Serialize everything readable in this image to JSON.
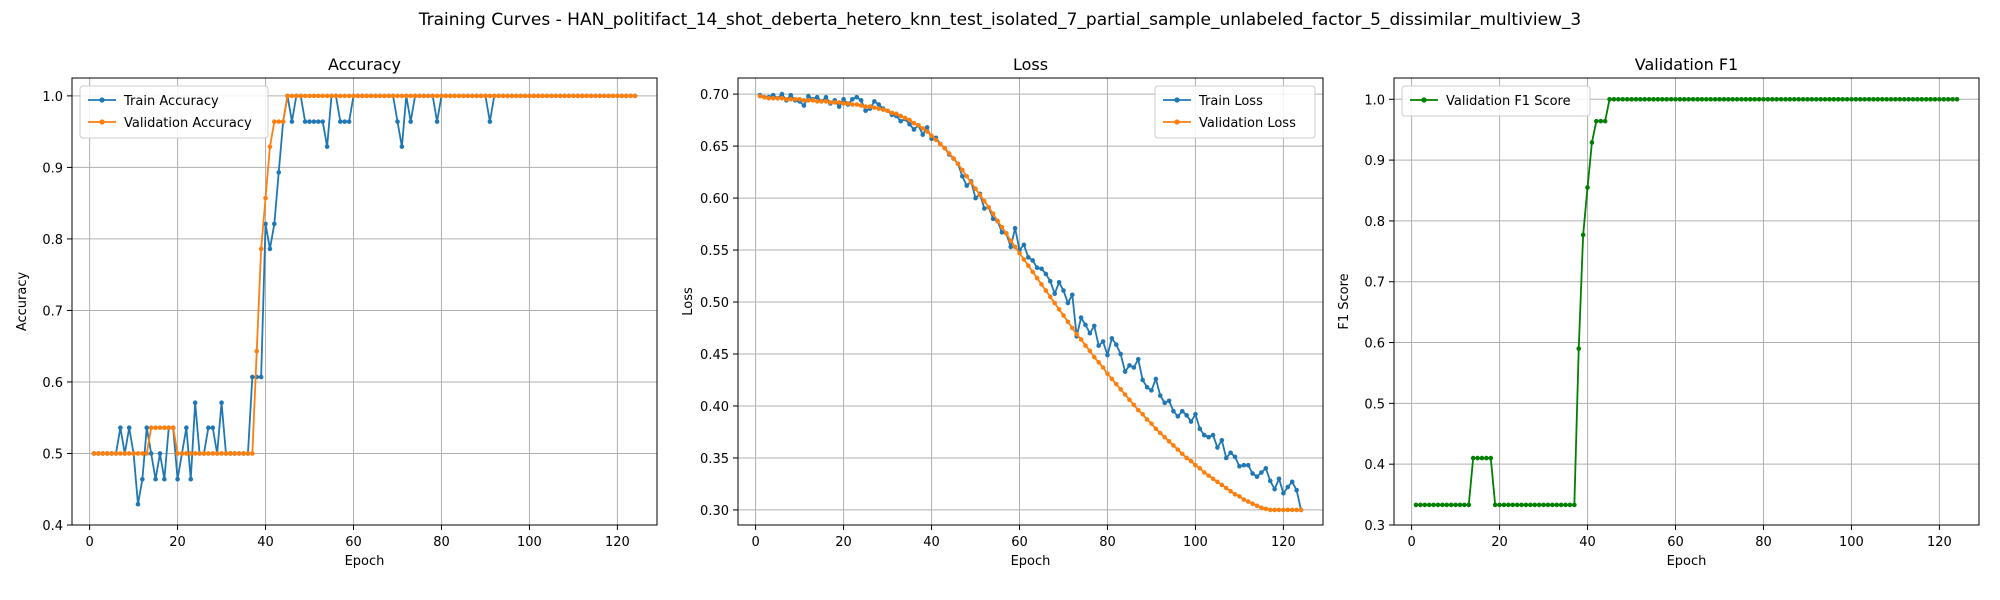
{
  "figure_title": "Training Curves - HAN_politifact_14_shot_deberta_hetero_knn_test_isolated_7_partial_sample_unlabeled_factor_5_dissimilar_multiview_3",
  "colors": {
    "train": "#1f77b4",
    "validation": "#ff7f0e",
    "f1": "#008000",
    "grid": "#b0b0b0",
    "axis": "#000000"
  },
  "chart_data": [
    {
      "type": "line",
      "title": "Accuracy",
      "xlabel": "Epoch",
      "ylabel": "Accuracy",
      "xlim": [
        -4,
        129
      ],
      "ylim": [
        0.4,
        1.025
      ],
      "xticks": [
        0,
        20,
        40,
        60,
        80,
        100,
        120
      ],
      "yticks": [
        0.4,
        0.5,
        0.6,
        0.7,
        0.8,
        0.9,
        1.0
      ],
      "ytick_labels": [
        "0.4",
        "0.5",
        "0.6",
        "0.7",
        "0.8",
        "0.9",
        "1.0"
      ],
      "grid": true,
      "legend_position": "upper-left",
      "x": [
        1,
        2,
        3,
        4,
        5,
        6,
        7,
        8,
        9,
        10,
        11,
        12,
        13,
        14,
        15,
        16,
        17,
        18,
        19,
        20,
        21,
        22,
        23,
        24,
        25,
        26,
        27,
        28,
        29,
        30,
        31,
        32,
        33,
        34,
        35,
        36,
        37,
        38,
        39,
        40,
        41,
        42,
        43,
        44,
        45,
        46,
        47,
        48,
        49,
        50,
        51,
        52,
        53,
        54,
        55,
        56,
        57,
        58,
        59,
        60,
        61,
        62,
        63,
        64,
        65,
        66,
        67,
        68,
        69,
        70,
        71,
        72,
        73,
        74,
        75,
        76,
        77,
        78,
        79,
        80,
        81,
        82,
        83,
        84,
        85,
        86,
        87,
        88,
        89,
        90,
        91,
        92,
        93,
        94,
        95,
        96,
        97,
        98,
        99,
        100,
        101,
        102,
        103,
        104,
        105,
        106,
        107,
        108,
        109,
        110,
        111,
        112,
        113,
        114,
        115,
        116,
        117,
        118,
        119,
        120,
        121,
        122,
        123,
        124
      ],
      "series": [
        {
          "name": "Train Accuracy",
          "color": "#1f77b4",
          "values": [
            0.5,
            0.5,
            0.5,
            0.5,
            0.5,
            0.5,
            0.536,
            0.5,
            0.536,
            0.5,
            0.429,
            0.464,
            0.536,
            0.5,
            0.464,
            0.5,
            0.464,
            0.536,
            0.536,
            0.464,
            0.5,
            0.536,
            0.464,
            0.571,
            0.5,
            0.5,
            0.536,
            0.536,
            0.5,
            0.571,
            0.5,
            0.5,
            0.5,
            0.5,
            0.5,
            0.5,
            0.607,
            0.607,
            0.607,
            0.821,
            0.786,
            0.821,
            0.893,
            0.964,
            1.0,
            0.964,
            1.0,
            1.0,
            0.964,
            0.964,
            0.964,
            0.964,
            0.964,
            0.929,
            1.0,
            1.0,
            0.964,
            0.964,
            0.964,
            1.0,
            1.0,
            1.0,
            1.0,
            1.0,
            1.0,
            1.0,
            1.0,
            1.0,
            1.0,
            0.964,
            0.929,
            1.0,
            0.964,
            1.0,
            1.0,
            1.0,
            1.0,
            1.0,
            0.964,
            1.0,
            1.0,
            1.0,
            1.0,
            1.0,
            1.0,
            1.0,
            1.0,
            1.0,
            1.0,
            1.0,
            0.964,
            1.0,
            1.0,
            1.0,
            1.0,
            1.0,
            1.0,
            1.0,
            1.0,
            1.0,
            1.0,
            1.0,
            1.0,
            1.0,
            1.0,
            1.0,
            1.0,
            1.0,
            1.0,
            1.0,
            1.0,
            1.0,
            1.0,
            1.0,
            1.0,
            1.0,
            1.0,
            1.0,
            1.0,
            1.0,
            1.0,
            1.0,
            1.0,
            1.0
          ]
        },
        {
          "name": "Validation Accuracy",
          "color": "#ff7f0e",
          "values": [
            0.5,
            0.5,
            0.5,
            0.5,
            0.5,
            0.5,
            0.5,
            0.5,
            0.5,
            0.5,
            0.5,
            0.5,
            0.5,
            0.536,
            0.536,
            0.536,
            0.536,
            0.536,
            0.536,
            0.5,
            0.5,
            0.5,
            0.5,
            0.5,
            0.5,
            0.5,
            0.5,
            0.5,
            0.5,
            0.5,
            0.5,
            0.5,
            0.5,
            0.5,
            0.5,
            0.5,
            0.5,
            0.643,
            0.786,
            0.857,
            0.929,
            0.964,
            0.964,
            0.964,
            1.0,
            1.0,
            1.0,
            1.0,
            1.0,
            1.0,
            1.0,
            1.0,
            1.0,
            1.0,
            1.0,
            1.0,
            1.0,
            1.0,
            1.0,
            1.0,
            1.0,
            1.0,
            1.0,
            1.0,
            1.0,
            1.0,
            1.0,
            1.0,
            1.0,
            1.0,
            1.0,
            1.0,
            1.0,
            1.0,
            1.0,
            1.0,
            1.0,
            1.0,
            1.0,
            1.0,
            1.0,
            1.0,
            1.0,
            1.0,
            1.0,
            1.0,
            1.0,
            1.0,
            1.0,
            1.0,
            1.0,
            1.0,
            1.0,
            1.0,
            1.0,
            1.0,
            1.0,
            1.0,
            1.0,
            1.0,
            1.0,
            1.0,
            1.0,
            1.0,
            1.0,
            1.0,
            1.0,
            1.0,
            1.0,
            1.0,
            1.0,
            1.0,
            1.0,
            1.0,
            1.0,
            1.0,
            1.0,
            1.0,
            1.0,
            1.0,
            1.0,
            1.0,
            1.0,
            1.0
          ]
        }
      ]
    },
    {
      "type": "line",
      "title": "Loss",
      "xlabel": "Epoch",
      "ylabel": "Loss",
      "xlim": [
        -4,
        129
      ],
      "ylim": [
        0.2855,
        0.7155
      ],
      "xticks": [
        0,
        20,
        40,
        60,
        80,
        100,
        120
      ],
      "yticks": [
        0.3,
        0.35,
        0.4,
        0.45,
        0.5,
        0.55,
        0.6,
        0.65,
        0.7
      ],
      "ytick_labels": [
        "0.30",
        "0.35",
        "0.40",
        "0.45",
        "0.50",
        "0.55",
        "0.60",
        "0.65",
        "0.70"
      ],
      "grid": true,
      "legend_position": "upper-right",
      "x": [
        1,
        2,
        3,
        4,
        5,
        6,
        7,
        8,
        9,
        10,
        11,
        12,
        13,
        14,
        15,
        16,
        17,
        18,
        19,
        20,
        21,
        22,
        23,
        24,
        25,
        26,
        27,
        28,
        29,
        30,
        31,
        32,
        33,
        34,
        35,
        36,
        37,
        38,
        39,
        40,
        41,
        42,
        43,
        44,
        45,
        46,
        47,
        48,
        49,
        50,
        51,
        52,
        53,
        54,
        55,
        56,
        57,
        58,
        59,
        60,
        61,
        62,
        63,
        64,
        65,
        66,
        67,
        68,
        69,
        70,
        71,
        72,
        73,
        74,
        75,
        76,
        77,
        78,
        79,
        80,
        81,
        82,
        83,
        84,
        85,
        86,
        87,
        88,
        89,
        90,
        91,
        92,
        93,
        94,
        95,
        96,
        97,
        98,
        99,
        100,
        101,
        102,
        103,
        104,
        105,
        106,
        107,
        108,
        109,
        110,
        111,
        112,
        113,
        114,
        115,
        116,
        117,
        118,
        119,
        120,
        121,
        122,
        123,
        124
      ],
      "series": [
        {
          "name": "Train Loss",
          "color": "#1f77b4",
          "values": [
            0.699,
            0.697,
            0.697,
            0.699,
            0.696,
            0.7,
            0.694,
            0.699,
            0.694,
            0.693,
            0.689,
            0.698,
            0.695,
            0.697,
            0.693,
            0.697,
            0.691,
            0.694,
            0.688,
            0.695,
            0.69,
            0.695,
            0.697,
            0.694,
            0.684,
            0.686,
            0.693,
            0.69,
            0.686,
            0.684,
            0.68,
            0.679,
            0.674,
            0.676,
            0.671,
            0.666,
            0.67,
            0.661,
            0.668,
            0.657,
            0.658,
            0.652,
            0.648,
            0.642,
            0.638,
            0.633,
            0.621,
            0.612,
            0.616,
            0.6,
            0.604,
            0.59,
            0.591,
            0.58,
            0.578,
            0.567,
            0.566,
            0.553,
            0.571,
            0.55,
            0.555,
            0.543,
            0.54,
            0.533,
            0.532,
            0.527,
            0.52,
            0.508,
            0.519,
            0.511,
            0.499,
            0.507,
            0.467,
            0.485,
            0.478,
            0.47,
            0.477,
            0.458,
            0.462,
            0.449,
            0.465,
            0.459,
            0.45,
            0.433,
            0.439,
            0.437,
            0.445,
            0.425,
            0.418,
            0.415,
            0.426,
            0.41,
            0.403,
            0.405,
            0.395,
            0.39,
            0.395,
            0.391,
            0.385,
            0.392,
            0.378,
            0.372,
            0.37,
            0.372,
            0.36,
            0.367,
            0.35,
            0.355,
            0.351,
            0.342,
            0.343,
            0.343,
            0.335,
            0.332,
            0.336,
            0.34,
            0.328,
            0.32,
            0.33,
            0.316,
            0.322,
            0.327,
            0.319,
            0.3
          ]
        },
        {
          "name": "Validation Loss",
          "color": "#ff7f0e",
          "values": [
            0.698,
            0.697,
            0.696,
            0.696,
            0.696,
            0.696,
            0.695,
            0.695,
            0.695,
            0.695,
            0.694,
            0.694,
            0.694,
            0.693,
            0.693,
            0.693,
            0.692,
            0.692,
            0.692,
            0.691,
            0.691,
            0.69,
            0.69,
            0.689,
            0.688,
            0.688,
            0.687,
            0.686,
            0.685,
            0.684,
            0.682,
            0.681,
            0.679,
            0.677,
            0.675,
            0.672,
            0.67,
            0.667,
            0.664,
            0.66,
            0.656,
            0.652,
            0.648,
            0.643,
            0.638,
            0.633,
            0.627,
            0.621,
            0.615,
            0.609,
            0.603,
            0.597,
            0.591,
            0.585,
            0.578,
            0.572,
            0.566,
            0.559,
            0.553,
            0.547,
            0.541,
            0.535,
            0.529,
            0.523,
            0.517,
            0.511,
            0.505,
            0.499,
            0.493,
            0.487,
            0.481,
            0.475,
            0.469,
            0.464,
            0.458,
            0.453,
            0.447,
            0.442,
            0.437,
            0.431,
            0.426,
            0.421,
            0.416,
            0.411,
            0.406,
            0.401,
            0.396,
            0.392,
            0.387,
            0.383,
            0.378,
            0.374,
            0.37,
            0.366,
            0.362,
            0.358,
            0.354,
            0.35,
            0.347,
            0.343,
            0.34,
            0.336,
            0.333,
            0.33,
            0.327,
            0.324,
            0.321,
            0.318,
            0.315,
            0.313,
            0.31,
            0.308,
            0.306,
            0.304,
            0.302,
            0.301,
            0.3,
            0.3,
            0.3,
            0.3,
            0.3,
            0.3,
            0.3,
            0.3
          ]
        }
      ]
    },
    {
      "type": "line",
      "title": "Validation F1",
      "xlabel": "Epoch",
      "ylabel": "F1 Score",
      "xlim": [
        -4,
        129
      ],
      "ylim": [
        0.3,
        1.035
      ],
      "xticks": [
        0,
        20,
        40,
        60,
        80,
        100,
        120
      ],
      "yticks": [
        0.3,
        0.4,
        0.5,
        0.6,
        0.7,
        0.8,
        0.9,
        1.0
      ],
      "ytick_labels": [
        "0.3",
        "0.4",
        "0.5",
        "0.6",
        "0.7",
        "0.8",
        "0.9",
        "1.0"
      ],
      "grid": true,
      "legend_position": "upper-left",
      "x": [
        1,
        2,
        3,
        4,
        5,
        6,
        7,
        8,
        9,
        10,
        11,
        12,
        13,
        14,
        15,
        16,
        17,
        18,
        19,
        20,
        21,
        22,
        23,
        24,
        25,
        26,
        27,
        28,
        29,
        30,
        31,
        32,
        33,
        34,
        35,
        36,
        37,
        38,
        39,
        40,
        41,
        42,
        43,
        44,
        45,
        46,
        47,
        48,
        49,
        50,
        51,
        52,
        53,
        54,
        55,
        56,
        57,
        58,
        59,
        60,
        61,
        62,
        63,
        64,
        65,
        66,
        67,
        68,
        69,
        70,
        71,
        72,
        73,
        74,
        75,
        76,
        77,
        78,
        79,
        80,
        81,
        82,
        83,
        84,
        85,
        86,
        87,
        88,
        89,
        90,
        91,
        92,
        93,
        94,
        95,
        96,
        97,
        98,
        99,
        100,
        101,
        102,
        103,
        104,
        105,
        106,
        107,
        108,
        109,
        110,
        111,
        112,
        113,
        114,
        115,
        116,
        117,
        118,
        119,
        120,
        121,
        122,
        123,
        124
      ],
      "series": [
        {
          "name": "Validation F1 Score",
          "color": "#008000",
          "values": [
            0.333,
            0.333,
            0.333,
            0.333,
            0.333,
            0.333,
            0.333,
            0.333,
            0.333,
            0.333,
            0.333,
            0.333,
            0.333,
            0.41,
            0.41,
            0.41,
            0.41,
            0.41,
            0.333,
            0.333,
            0.333,
            0.333,
            0.333,
            0.333,
            0.333,
            0.333,
            0.333,
            0.333,
            0.333,
            0.333,
            0.333,
            0.333,
            0.333,
            0.333,
            0.333,
            0.333,
            0.333,
            0.59,
            0.777,
            0.855,
            0.929,
            0.964,
            0.964,
            0.964,
            1.0,
            1.0,
            1.0,
            1.0,
            1.0,
            1.0,
            1.0,
            1.0,
            1.0,
            1.0,
            1.0,
            1.0,
            1.0,
            1.0,
            1.0,
            1.0,
            1.0,
            1.0,
            1.0,
            1.0,
            1.0,
            1.0,
            1.0,
            1.0,
            1.0,
            1.0,
            1.0,
            1.0,
            1.0,
            1.0,
            1.0,
            1.0,
            1.0,
            1.0,
            1.0,
            1.0,
            1.0,
            1.0,
            1.0,
            1.0,
            1.0,
            1.0,
            1.0,
            1.0,
            1.0,
            1.0,
            1.0,
            1.0,
            1.0,
            1.0,
            1.0,
            1.0,
            1.0,
            1.0,
            1.0,
            1.0,
            1.0,
            1.0,
            1.0,
            1.0,
            1.0,
            1.0,
            1.0,
            1.0,
            1.0,
            1.0,
            1.0,
            1.0,
            1.0,
            1.0,
            1.0,
            1.0,
            1.0,
            1.0,
            1.0,
            1.0,
            1.0,
            1.0,
            1.0,
            1.0
          ]
        }
      ]
    }
  ]
}
